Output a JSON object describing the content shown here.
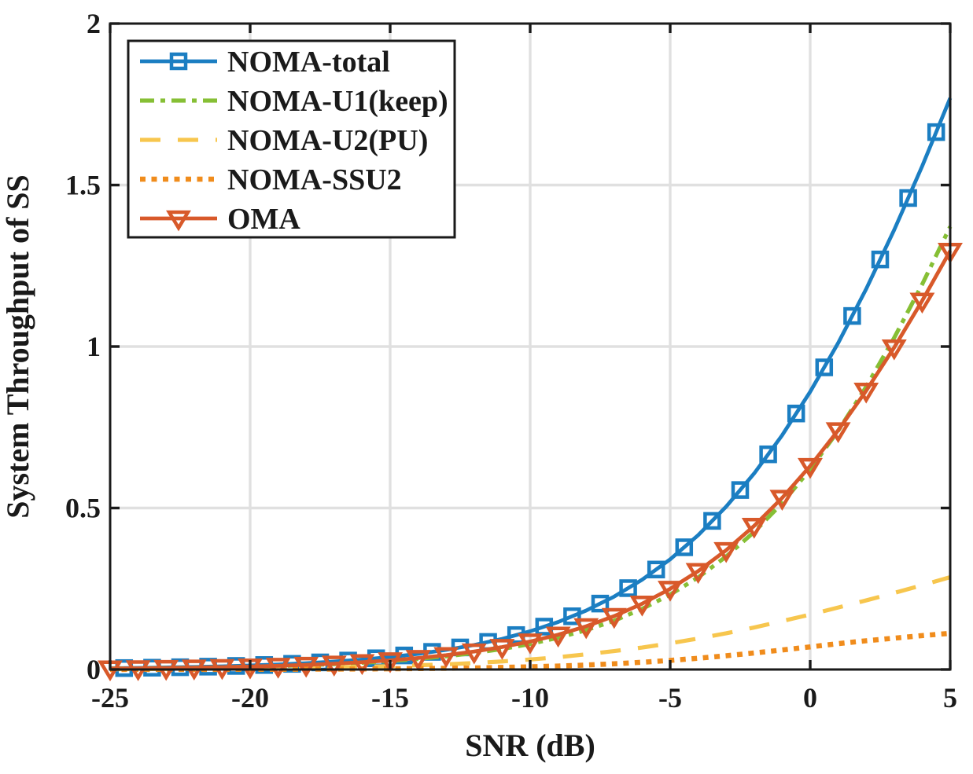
{
  "figure": {
    "background": "#ffffff",
    "frame_color": "#1a1a1a",
    "grid_color": "#e0e0e0",
    "text_color": "#1a1a1a"
  },
  "chart_data": {
    "type": "line",
    "title": "",
    "xlabel": "SNR (dB)",
    "ylabel": "System Throughput of SS",
    "xlim": [
      -25,
      5
    ],
    "ylim": [
      0,
      2
    ],
    "xticks": [
      -25,
      -20,
      -15,
      -10,
      -5,
      0,
      5
    ],
    "xticklabels": [
      "-25",
      "-20",
      "-15",
      "-10",
      "-5",
      "0",
      "5"
    ],
    "yticks": [
      0,
      0.5,
      1,
      1.5,
      2
    ],
    "yticklabels": [
      "0",
      "0.5",
      "1",
      "1.5",
      "2"
    ],
    "grid": true,
    "legend_position": "top-left",
    "x": [
      -25,
      -24,
      -23,
      -22,
      -21,
      -20,
      -19,
      -18,
      -17,
      -16,
      -15,
      -14,
      -13,
      -12,
      -11,
      -10,
      -9,
      -8,
      -7,
      -6,
      -5,
      -4,
      -3,
      -2,
      -1,
      0,
      1,
      2,
      3,
      4,
      5
    ],
    "series": [
      {
        "name": "NOMA-total",
        "color": "#1b7ec2",
        "line_style": "solid",
        "line_width": 4.8,
        "marker": "square",
        "marker_step": 1,
        "marker_offset": 0.5,
        "values": [
          0.0039,
          0.0049,
          0.0062,
          0.0078,
          0.0098,
          0.0123,
          0.0155,
          0.0195,
          0.0245,
          0.0308,
          0.0386,
          0.0484,
          0.0607,
          0.0759,
          0.0948,
          0.1183,
          0.1471,
          0.1825,
          0.2257,
          0.2781,
          0.341,
          0.4159,
          0.5043,
          0.6071,
          0.7254,
          0.86,
          1.011,
          1.1783,
          1.3611,
          1.5586,
          1.7693
        ]
      },
      {
        "name": "NOMA-U1(keep)",
        "color": "#86bf35",
        "line_style": "dash-dot",
        "line_width": 5.2,
        "marker": "none",
        "values": [
          0.0028,
          0.0034,
          0.0044,
          0.0055,
          0.0068,
          0.0084,
          0.0107,
          0.0133,
          0.0167,
          0.0209,
          0.0261,
          0.0325,
          0.041,
          0.051,
          0.0634,
          0.079,
          0.0984,
          0.1217,
          0.151,
          0.1877,
          0.2319,
          0.2851,
          0.3498,
          0.426,
          0.515,
          0.62,
          0.739,
          0.8753,
          1.0271,
          1.1926,
          1.3713
        ]
      },
      {
        "name": "NOMA-U2(PU)",
        "color": "#f7c64e",
        "line_style": "dashed",
        "line_width": 5.2,
        "marker": "none",
        "values": [
          0.001,
          0.0013,
          0.0016,
          0.002,
          0.0026,
          0.0033,
          0.0041,
          0.0052,
          0.0065,
          0.0082,
          0.0103,
          0.013,
          0.016,
          0.02,
          0.025,
          0.031,
          0.038,
          0.047,
          0.057,
          0.068,
          0.081,
          0.096,
          0.112,
          0.13,
          0.15,
          0.17,
          0.192,
          0.214,
          0.237,
          0.261,
          0.286
        ]
      },
      {
        "name": "NOMA-SSU2",
        "color": "#f08c1c",
        "line_style": "dotted",
        "line_width": 6.5,
        "marker": "none",
        "values": [
          0.0001,
          0.0002,
          0.0002,
          0.0003,
          0.0004,
          0.0006,
          0.0007,
          0.001,
          0.0013,
          0.0017,
          0.0022,
          0.0029,
          0.0037,
          0.0049,
          0.0064,
          0.0083,
          0.0107,
          0.0138,
          0.0177,
          0.0224,
          0.0281,
          0.0348,
          0.0425,
          0.0511,
          0.0604,
          0.07,
          0.08,
          0.089,
          0.097,
          0.105,
          0.112
        ]
      },
      {
        "name": "OMA",
        "color": "#d8592a",
        "line_style": "solid",
        "line_width": 4.8,
        "marker": "triangle-down",
        "marker_step": 1,
        "marker_offset": 0,
        "values": [
          0.0029,
          0.0036,
          0.0045,
          0.0057,
          0.0072,
          0.009,
          0.0114,
          0.0143,
          0.018,
          0.0225,
          0.0283,
          0.0355,
          0.0445,
          0.0556,
          0.0695,
          0.0866,
          0.1077,
          0.1337,
          0.1653,
          0.2037,
          0.2498,
          0.3046,
          0.3694,
          0.4447,
          0.5314,
          0.63,
          0.7406,
          0.8632,
          0.9971,
          1.1418,
          1.2961
        ]
      }
    ]
  },
  "legend": {
    "items": [
      {
        "label": "NOMA-total"
      },
      {
        "label": "NOMA-U1(keep)"
      },
      {
        "label": "NOMA-U2(PU)"
      },
      {
        "label": "NOMA-SSU2"
      },
      {
        "label": "OMA"
      }
    ]
  }
}
